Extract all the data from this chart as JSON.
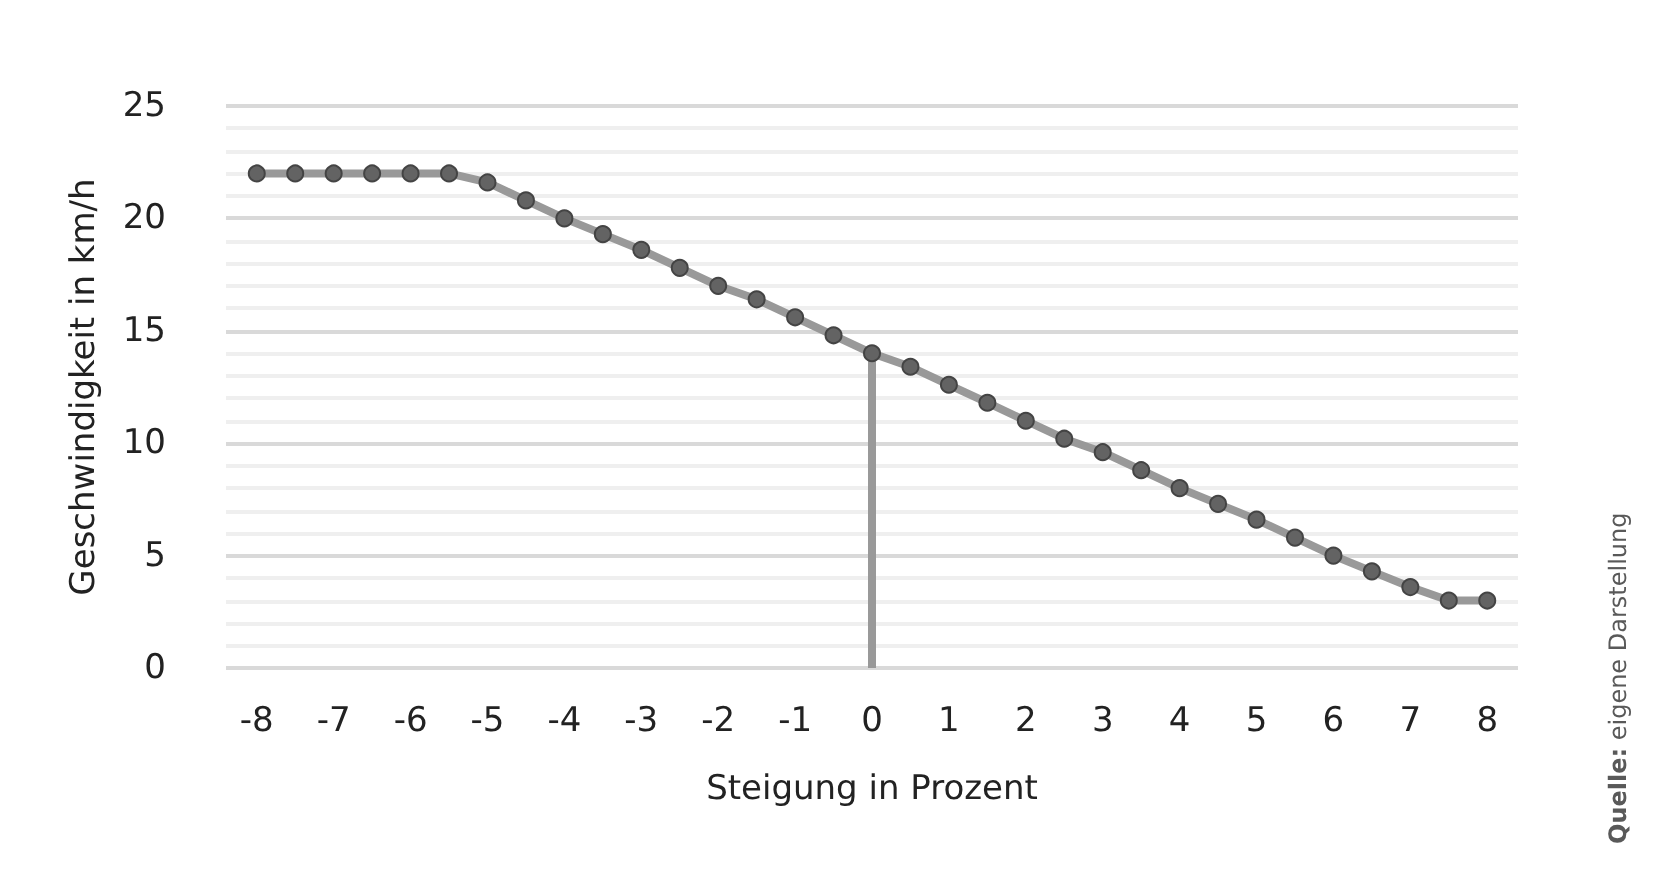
{
  "chart_data": {
    "type": "line",
    "xlabel": "Steigung in Prozent",
    "ylabel": "Geschwindigkeit in km/h",
    "annotations": [
      "Quelle: eigene Darstellung"
    ],
    "x": [
      -8,
      -7.5,
      -7,
      -6.5,
      -6,
      -5.5,
      -5,
      -4.5,
      -4,
      -3.5,
      -3,
      -2.5,
      -2,
      -1.5,
      -1,
      -0.5,
      0,
      0.5,
      1,
      1.5,
      2,
      2.5,
      3,
      3.5,
      4,
      4.5,
      5,
      5.5,
      6,
      6.5,
      7,
      7.5,
      8
    ],
    "series": [
      {
        "color": "#999999",
        "values": [
          22,
          22,
          22,
          22,
          22,
          22,
          21.6,
          20.8,
          20,
          19.3,
          18.6,
          17.8,
          17,
          16.4,
          15.6,
          14.8,
          14,
          13.4,
          12.6,
          11.8,
          11,
          10.2,
          9.6,
          8.8,
          8,
          7.3,
          6.6,
          5.8,
          5,
          4.3,
          3.6,
          3,
          3
        ]
      }
    ],
    "xlim": [
      -8.4,
      8.4
    ],
    "xticks": [
      -8,
      -7,
      -6,
      -5,
      -4,
      -3,
      -2,
      -1,
      0,
      1,
      2,
      3,
      4,
      5,
      6,
      7,
      8
    ],
    "ylim": [
      0,
      25
    ],
    "yticks": [
      0,
      5,
      10,
      15,
      20,
      25
    ],
    "ref_lines": [
      {
        "axis": "x",
        "value": 0,
        "color": "#999999"
      }
    ],
    "grid": "y",
    "marker": "circle",
    "line_style": "solid"
  }
}
